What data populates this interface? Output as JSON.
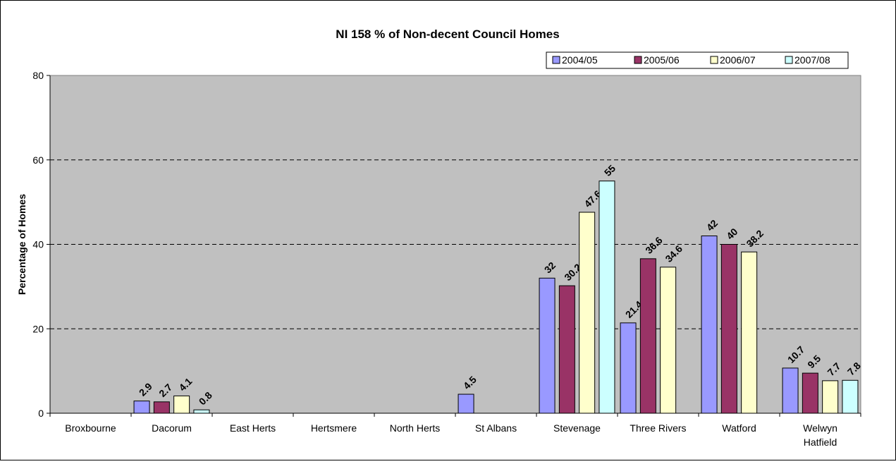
{
  "chart_data": {
    "type": "bar",
    "title": "NI 158 % of Non-decent Council Homes",
    "xlabel": "",
    "ylabel": "Percentage of Homes",
    "ylim": [
      0,
      80
    ],
    "yticks": [
      0,
      20,
      40,
      60,
      80
    ],
    "grid": true,
    "legend_position": "top-right",
    "categories": [
      [
        "Broxbourne"
      ],
      [
        "Dacorum"
      ],
      [
        "East Herts"
      ],
      [
        "Hertsmere"
      ],
      [
        "North Herts"
      ],
      [
        "St Albans"
      ],
      [
        "Stevenage"
      ],
      [
        "Three Rivers"
      ],
      [
        "Watford"
      ],
      [
        "Welwyn",
        "Hatfield"
      ]
    ],
    "series": [
      {
        "name": "2004/05",
        "color": "#9999ff",
        "values": [
          null,
          2.9,
          null,
          null,
          null,
          4.5,
          32,
          21.4,
          42,
          10.7
        ]
      },
      {
        "name": "2005/06",
        "color": "#993366",
        "values": [
          null,
          2.7,
          null,
          null,
          null,
          null,
          30.2,
          36.6,
          40,
          9.5
        ]
      },
      {
        "name": "2006/07",
        "color": "#ffffcc",
        "values": [
          null,
          4.1,
          null,
          null,
          null,
          null,
          47.6,
          34.6,
          38.2,
          7.7
        ]
      },
      {
        "name": "2007/08",
        "color": "#ccffff",
        "values": [
          null,
          0.8,
          null,
          null,
          null,
          null,
          55,
          null,
          null,
          7.8
        ]
      }
    ],
    "plot_background": "#c0c0c0"
  }
}
